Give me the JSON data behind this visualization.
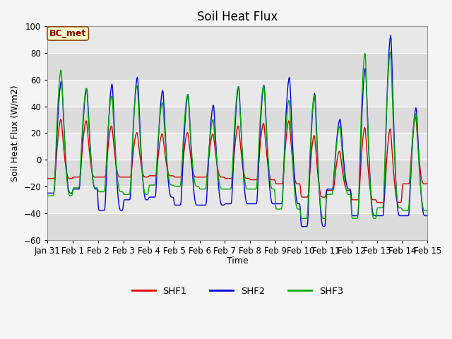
{
  "title": "Soil Heat Flux",
  "ylabel": "Soil Heat Flux (W/m2)",
  "xlabel": "Time",
  "ylim": [
    -60,
    100
  ],
  "yticks": [
    -60,
    -40,
    -20,
    0,
    20,
    40,
    60,
    80,
    100
  ],
  "fig_bg_color": "#f5f5f5",
  "plot_bg_color": "#e8e8e8",
  "grid_color": "#ffffff",
  "annotation_label": "BC_met",
  "annotation_bg": "#ffffcc",
  "annotation_border": "#8B4513",
  "annotation_text_color": "#8B0000",
  "legend_labels": [
    "SHF1",
    "SHF2",
    "SHF3"
  ],
  "line_colors": [
    "#dd0000",
    "#0000dd",
    "#00aa00"
  ],
  "line_width": 1.0,
  "title_fontsize": 12,
  "label_fontsize": 9,
  "tick_fontsize": 8.5,
  "n_days": 15,
  "shf2_day_peaks": [
    60,
    54,
    58,
    63,
    53,
    50,
    42,
    56,
    57,
    63,
    51,
    31,
    70,
    95,
    40
  ],
  "shf2_day_troughs": [
    -25,
    -22,
    -38,
    -30,
    -28,
    -34,
    -34,
    -33,
    -33,
    -33,
    -50,
    -22,
    -42,
    -42,
    -42
  ],
  "shf3_day_peaks": [
    69,
    55,
    49,
    57,
    44,
    50,
    31,
    56,
    57,
    46,
    50,
    26,
    82,
    83,
    36
  ],
  "shf3_day_troughs": [
    -27,
    -21,
    -24,
    -26,
    -19,
    -20,
    -22,
    -22,
    -22,
    -37,
    -44,
    -26,
    -44,
    -36,
    -38
  ],
  "shf1_day_peaks": [
    31,
    30,
    26,
    21,
    20,
    21,
    20,
    26,
    28,
    30,
    19,
    7,
    25,
    24,
    33
  ],
  "shf1_day_troughs": [
    -14,
    -13,
    -13,
    -13,
    -12,
    -13,
    -13,
    -14,
    -15,
    -18,
    -28,
    -23,
    -30,
    -32,
    -18
  ],
  "tick_labels": [
    "Jan 31",
    "Feb 1",
    "Feb 2",
    "Feb 3",
    "Feb 4",
    "Feb 5",
    "Feb 6",
    "Feb 7",
    "Feb 8",
    "Feb 9",
    "Feb 10",
    "Feb 11",
    "Feb 12",
    "Feb 13",
    "Feb 14",
    "Feb 15"
  ]
}
